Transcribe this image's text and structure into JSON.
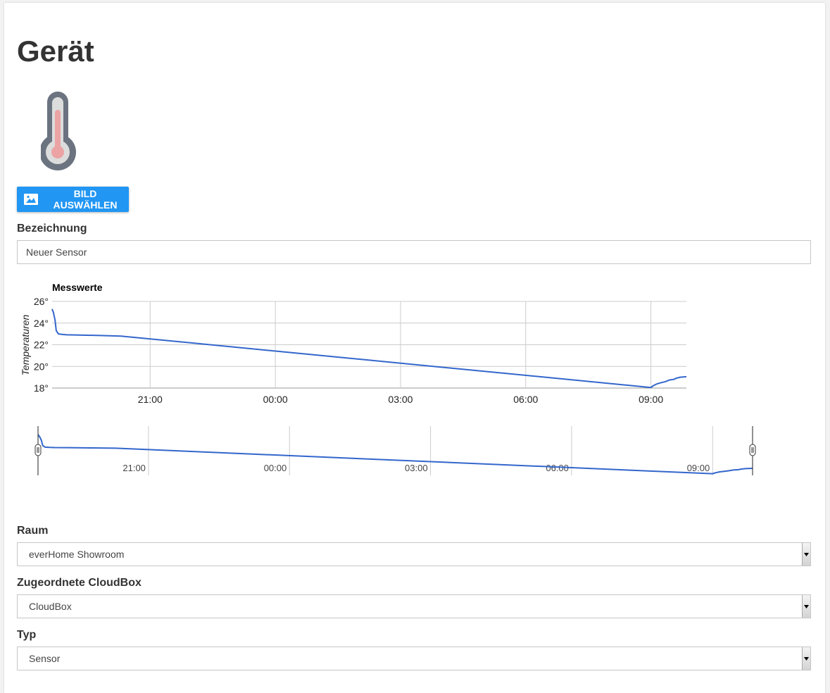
{
  "page": {
    "title": "Gerät"
  },
  "image_button": {
    "label": "BILD AUSWÄHLEN",
    "icon": "image-icon"
  },
  "device_image": {
    "icon": "thermometer-icon"
  },
  "name_field": {
    "label": "Bezeichnung",
    "value": "Neuer Sensor"
  },
  "room_field": {
    "label": "Raum",
    "value": "everHome Showroom"
  },
  "cloudbox_field": {
    "label": "Zugeordnete CloudBox",
    "value": "CloudBox"
  },
  "type_field": {
    "label": "Typ",
    "value": "Sensor"
  },
  "colors": {
    "accent": "#2196f3",
    "series": "#3366cc",
    "grid": "#cccccc"
  },
  "chart_data": {
    "type": "line",
    "title": "Messwerte",
    "ylabel": "Temperaturen",
    "xlabel": "",
    "yticks": [
      "26°",
      "24°",
      "22°",
      "20°",
      "18°"
    ],
    "ytick_values": [
      26,
      24,
      22,
      20,
      18
    ],
    "ylim": [
      18,
      26
    ],
    "xlim": [
      18.65,
      33.85
    ],
    "xticks": [
      "21:00",
      "00:00",
      "03:00",
      "06:00",
      "09:00"
    ],
    "xtick_values": [
      21,
      24,
      27,
      30,
      33
    ],
    "grid": true,
    "legend": "none",
    "series": [
      {
        "x": [
          18.65,
          18.68,
          18.72,
          18.75,
          18.8,
          18.9,
          19.0,
          19.3,
          19.8,
          20.3,
          33.0,
          33.05,
          33.15,
          33.25,
          33.35,
          33.45,
          33.55,
          33.6,
          33.7,
          33.85
        ],
        "y": [
          25.3,
          25.0,
          24.3,
          23.3,
          23.0,
          22.95,
          22.92,
          22.9,
          22.85,
          22.8,
          18.05,
          18.2,
          18.4,
          18.5,
          18.6,
          18.75,
          18.8,
          18.9,
          19.0,
          19.05
        ]
      }
    ],
    "range_selector": {
      "xticks": [
        "21:00",
        "00:00",
        "03:00",
        "06:00",
        "09:00"
      ]
    }
  }
}
